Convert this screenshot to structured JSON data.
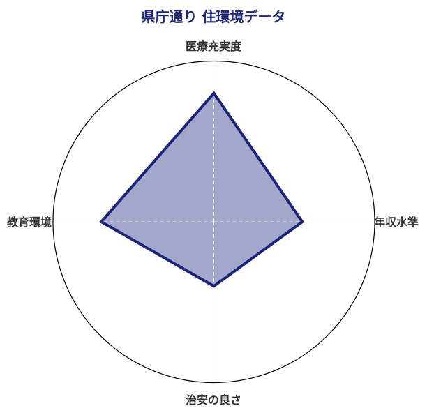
{
  "chart_data": {
    "type": "radar",
    "title": "県庁通り 住環境データ",
    "categories": [
      "医療充実度",
      "年収水準",
      "治安の良さ",
      "教育環境"
    ],
    "series": [
      {
        "values": [
          80,
          55,
          40,
          70
        ]
      }
    ],
    "rlim": [
      0,
      100
    ],
    "grid": true,
    "legend": "none",
    "colors": {
      "line": "#1a237e",
      "fill": "#a3a8cb",
      "title": "#1a237e",
      "label": "#333333",
      "outer_circle": "#000000",
      "grid": "#dddddd"
    }
  }
}
